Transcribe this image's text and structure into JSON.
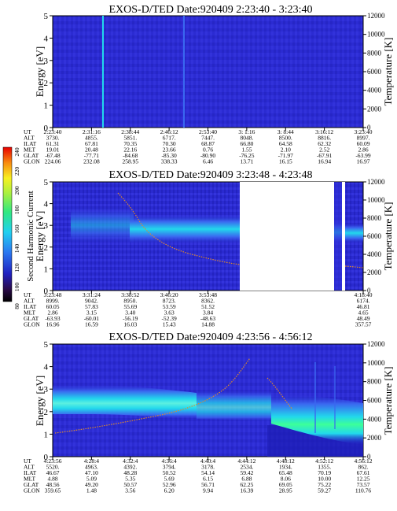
{
  "colors": {
    "background_fill": "#2a2ad0",
    "deep": "#1c1cb4",
    "cyan": "#22d8ec",
    "green_core": "#3cff9a",
    "blue_mid": "#3a68f0",
    "temp_trace": "#e08a2a"
  },
  "chart_data": [
    {
      "type": "heatmap",
      "title": "EXOS-D/TED   Date:920409   2:23:40 - 3:23:40",
      "ylabel": "Energy [eV]",
      "y2label": "Temperature [K]",
      "ylim": [
        0,
        5
      ],
      "y2lim": [
        0,
        12000
      ],
      "yticks": [
        "0",
        "1",
        "2",
        "3",
        "4",
        "5"
      ],
      "y2ticks": [
        "0",
        "2000",
        "4000",
        "6000",
        "8000",
        "10000",
        "12000"
      ],
      "orbit_table": {
        "rows": [
          {
            "label": "UT",
            "values": [
              "2:23:40",
              "2:31:16",
              "2:38:44",
              "2:46:12",
              "2:53:40",
              "3: 1:16",
              "3: 8:44",
              "3:16:12",
              "3:23:40"
            ]
          },
          {
            "label": "ALT",
            "values": [
              "3730.",
              "4855.",
              "5851.",
              "6717.",
              "7447.",
              "8048.",
              "8500.",
              "8816.",
              "8997."
            ]
          },
          {
            "label": "ILAT",
            "values": [
              "61.31",
              "67.81",
              "70.35",
              "70.30",
              "68.87",
              "66.80",
              "64.58",
              "62.32",
              "60.09"
            ]
          },
          {
            "label": "MLT",
            "values": [
              "19.01",
              "20.48",
              "22.16",
              "23.66",
              "0.76",
              "1.55",
              "2.10",
              "2.52",
              "2.86"
            ]
          },
          {
            "label": "GLAT",
            "values": [
              "-67.48",
              "-77.71",
              "-84.68",
              "-85.30",
              "-80.90",
              "-76.25",
              "-71.97",
              "-67.91",
              "-63.99"
            ]
          },
          {
            "label": "GLON",
            "values": [
              "224.06",
              "232.08",
              "258.95",
              "338.33",
              "6.46",
              "13.71",
              "16.15",
              "16.94",
              "16.97"
            ]
          }
        ]
      }
    },
    {
      "type": "heatmap",
      "title": "EXOS-D/TED   Date:920409   3:23:48 - 4:23:48",
      "ylabel": "Energy [eV]",
      "y2label": "Temperature [K]",
      "ylim": [
        0,
        5
      ],
      "y2lim": [
        0,
        12000
      ],
      "yticks": [
        "0",
        "1",
        "2",
        "3",
        "4",
        "5"
      ],
      "y2ticks": [
        "0",
        "2000",
        "4000",
        "6000",
        "8000",
        "10000",
        "12000"
      ],
      "colorbar": {
        "label": "Second Harmonic Current",
        "range": [
          80,
          240
        ],
        "ticks": [
          "80",
          "100",
          "120",
          "140",
          "160",
          "180",
          "200",
          "220",
          "240"
        ]
      },
      "orbit_table": {
        "rows": [
          {
            "label": "UT",
            "values": [
              "3:23:48",
              "3:31:24",
              "3:38:52",
              "3:46:20",
              "3:53:48",
              "",
              "",
              "",
              "4:18:40"
            ]
          },
          {
            "label": "ALT",
            "values": [
              "8999.",
              "9042.",
              "8950.",
              "8723.",
              "8362.",
              "",
              "",
              "",
              "6174."
            ]
          },
          {
            "label": "ILAT",
            "values": [
              "60.05",
              "57.83",
              "55.69",
              "53.59",
              "51.52",
              "",
              "",
              "",
              "46.81"
            ]
          },
          {
            "label": "MLT",
            "values": [
              "2.86",
              "3.15",
              "3.40",
              "3.63",
              "3.84",
              "",
              "",
              "",
              "4.65"
            ]
          },
          {
            "label": "GLAT",
            "values": [
              "-63.93",
              "-60.01",
              "-56.19",
              "-52.39",
              "-48.63",
              "",
              "",
              "",
              "48.49"
            ]
          },
          {
            "label": "GLON",
            "values": [
              "16.96",
              "16.59",
              "16.03",
              "15.43",
              "14.88",
              "",
              "",
              "",
              "357.57"
            ]
          }
        ]
      }
    },
    {
      "type": "heatmap",
      "title": "EXOS-D/TED   Date:920409   4:23:56 - 4:56:12",
      "ylabel": "Energy [eV]",
      "y2label": "Temperature [K]",
      "ylim": [
        0,
        5
      ],
      "y2lim": [
        0,
        12000
      ],
      "yticks": [
        "0",
        "1",
        "2",
        "3",
        "4",
        "5"
      ],
      "y2ticks": [
        "0",
        "2000",
        "4000",
        "6000",
        "8000",
        "10000",
        "12000"
      ],
      "orbit_table": {
        "rows": [
          {
            "label": "UT",
            "values": [
              "4:23:56",
              "4:28:4",
              "4:32:4",
              "4:36:4",
              "4:40:4",
              "4:44:12",
              "4:48:12",
              "4:52:12",
              "4:56:12"
            ]
          },
          {
            "label": "ALT",
            "values": [
              "5520.",
              "4963.",
              "4392.",
              "3794.",
              "3178.",
              "2534.",
              "1934.",
              "1355.",
              "862."
            ]
          },
          {
            "label": "ILAT",
            "values": [
              "46.67",
              "47.10",
              "48.28",
              "50.52",
              "54.14",
              "59.42",
              "65.48",
              "70.19",
              "67.61"
            ]
          },
          {
            "label": "MLT",
            "values": [
              "4.88",
              "5.09",
              "5.35",
              "5.69",
              "6.15",
              "6.88",
              "8.06",
              "10.00",
              "12.25"
            ]
          },
          {
            "label": "GLAT",
            "values": [
              "48.56",
              "49.20",
              "50.57",
              "52.96",
              "56.71",
              "62.25",
              "69.05",
              "75.22",
              "73.57"
            ]
          },
          {
            "label": "GLON",
            "values": [
              "359.65",
              "1.48",
              "3.56",
              "6.20",
              "9.94",
              "16.39",
              "28.95",
              "59.27",
              "110.76"
            ]
          }
        ]
      }
    }
  ]
}
